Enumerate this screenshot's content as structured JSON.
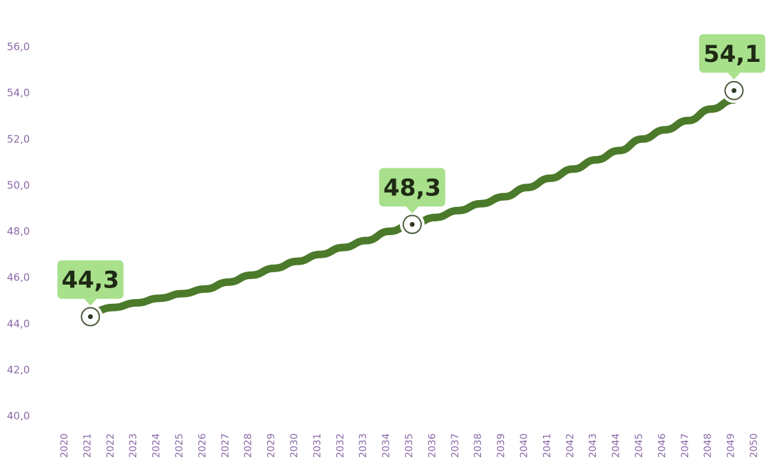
{
  "chart_data": {
    "type": "line",
    "title": "",
    "xlabel": "",
    "ylabel": "",
    "ylim": [
      40,
      56
    ],
    "yticks": [
      "40,0",
      "42,0",
      "44,0",
      "46,0",
      "48,0",
      "50,0",
      "52,0",
      "54,0",
      "56,0"
    ],
    "categories": [
      "2020",
      "2021",
      "2022",
      "2023",
      "2024",
      "2025",
      "2026",
      "2027",
      "2028",
      "2029",
      "2030",
      "2031",
      "2032",
      "2033",
      "2034",
      "2035",
      "2036",
      "2037",
      "2038",
      "2039",
      "2040",
      "2041",
      "2042",
      "2043",
      "2044",
      "2045",
      "2046",
      "2047",
      "2048",
      "2049",
      "2050"
    ],
    "series": [
      {
        "name": "",
        "values": [
          44.3,
          44.5,
          44.7,
          44.9,
          45.1,
          45.3,
          45.5,
          45.8,
          46.1,
          46.4,
          46.7,
          47.0,
          47.3,
          47.6,
          48.0,
          48.3,
          48.6,
          48.9,
          49.2,
          49.5,
          49.9,
          50.3,
          50.7,
          51.1,
          51.5,
          52.0,
          52.4,
          52.8,
          53.3,
          53.7,
          54.1
        ]
      }
    ],
    "annotations": [
      {
        "x": "2021",
        "value": 44.3,
        "label": "44,3"
      },
      {
        "x": "2035",
        "value": 48.3,
        "label": "48,3"
      },
      {
        "x": "2049",
        "value": 54.1,
        "label": "54,1"
      }
    ],
    "grid": false,
    "colors": {
      "line": "#4a7a2a",
      "callout": "#a8e08c",
      "axis_text": "#8a6aa8",
      "marker_ring": "#4a5a3a"
    }
  }
}
